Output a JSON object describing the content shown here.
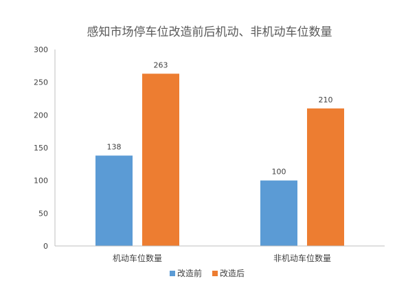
{
  "chart_data": {
    "type": "bar",
    "title": "感知市场停车位改造前后机动、非机动车位数量",
    "categories": [
      "机动车位数量",
      "非机动车位数量"
    ],
    "series": [
      {
        "name": "改造前",
        "values": [
          138,
          100
        ],
        "color": "#5B9BD5"
      },
      {
        "name": "改造后",
        "values": [
          263,
          210
        ],
        "color": "#ED7D31"
      }
    ],
    "ylim": [
      0,
      300
    ],
    "yticks": [
      0,
      50,
      100,
      150,
      200,
      250,
      300
    ],
    "xlabel": "",
    "ylabel": "",
    "legend": "bottom",
    "grid": false
  }
}
